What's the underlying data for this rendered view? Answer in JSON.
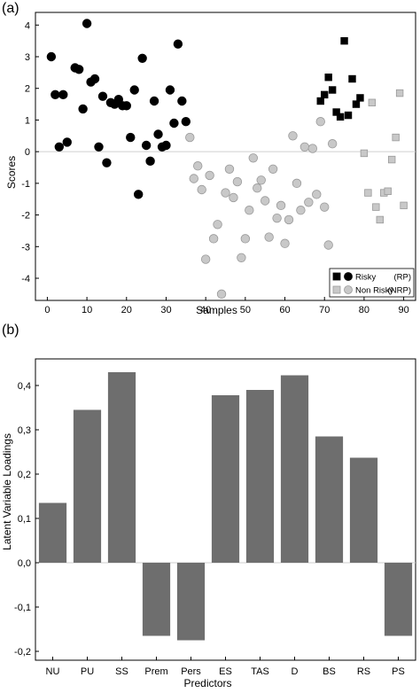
{
  "chart_data": [
    {
      "type": "scatter",
      "panel_label": "(a)",
      "xlabel": "Samples",
      "ylabel": "Scores",
      "xlim": [
        -3,
        93
      ],
      "ylim": [
        -4.7,
        4.4
      ],
      "xticks": [
        0,
        10,
        20,
        30,
        40,
        50,
        60,
        70,
        80,
        90
      ],
      "yticks": [
        -4,
        -3,
        -2,
        -1,
        0,
        1,
        2,
        3,
        4
      ],
      "zero_line": true,
      "grid": false,
      "legend_position": "bottom-right",
      "legend": [
        {
          "label": "Risky",
          "code": "(RP)"
        },
        {
          "label": "Non Risky",
          "code": "(NRP)"
        }
      ],
      "colors": {
        "risky": "#000000",
        "non_risky": "#c8c8c8",
        "non_risky_edge": "#9a9a9a"
      },
      "series": [
        {
          "name": "Risky (RP) calibration",
          "marker": "circle",
          "color": "#000000",
          "points": [
            [
              1,
              3.0
            ],
            [
              2,
              1.8
            ],
            [
              3,
              0.15
            ],
            [
              4,
              1.8
            ],
            [
              5,
              0.3
            ],
            [
              7,
              2.65
            ],
            [
              8,
              2.6
            ],
            [
              9,
              1.35
            ],
            [
              10,
              4.05
            ],
            [
              11,
              2.2
            ],
            [
              12,
              2.3
            ],
            [
              13,
              0.15
            ],
            [
              14,
              1.75
            ],
            [
              15,
              -0.35
            ],
            [
              16,
              1.55
            ],
            [
              17,
              1.5
            ],
            [
              18,
              1.65
            ],
            [
              19,
              1.45
            ],
            [
              20,
              1.45
            ],
            [
              21,
              0.45
            ],
            [
              22,
              1.95
            ],
            [
              23,
              -1.35
            ],
            [
              24,
              2.95
            ],
            [
              25,
              0.2
            ],
            [
              26,
              -0.3
            ],
            [
              27,
              1.6
            ],
            [
              28,
              0.55
            ],
            [
              29,
              0.15
            ],
            [
              30,
              0.2
            ],
            [
              31,
              1.95
            ],
            [
              32,
              0.9
            ],
            [
              33,
              3.4
            ],
            [
              34,
              1.6
            ],
            [
              35,
              0.95
            ]
          ]
        },
        {
          "name": "Non Risky (NRP) calibration",
          "marker": "circle",
          "color": "#c8c8c8",
          "points": [
            [
              36,
              0.45
            ],
            [
              37,
              -0.85
            ],
            [
              38,
              -0.45
            ],
            [
              39,
              -1.2
            ],
            [
              40,
              -3.4
            ],
            [
              41,
              -0.75
            ],
            [
              42,
              -2.75
            ],
            [
              43,
              -2.3
            ],
            [
              44,
              -4.5
            ],
            [
              45,
              -1.3
            ],
            [
              46,
              -0.55
            ],
            [
              47,
              -1.45
            ],
            [
              48,
              -0.95
            ],
            [
              49,
              -3.35
            ],
            [
              50,
              -2.75
            ],
            [
              51,
              -1.85
            ],
            [
              52,
              -0.2
            ],
            [
              53,
              -1.15
            ],
            [
              54,
              -0.9
            ],
            [
              55,
              -1.55
            ],
            [
              56,
              -2.7
            ],
            [
              57,
              -0.55
            ],
            [
              58,
              -2.1
            ],
            [
              59,
              -1.7
            ],
            [
              60,
              -2.9
            ],
            [
              61,
              -2.15
            ],
            [
              62,
              0.5
            ],
            [
              63,
              -1.0
            ],
            [
              64,
              -1.85
            ],
            [
              65,
              0.15
            ],
            [
              66,
              -1.6
            ],
            [
              67,
              0.1
            ],
            [
              68,
              -1.35
            ],
            [
              69,
              0.95
            ],
            [
              70,
              -1.75
            ],
            [
              71,
              -2.95
            ],
            [
              72,
              0.25
            ]
          ]
        },
        {
          "name": "Risky (RP) validation",
          "marker": "square",
          "color": "#000000",
          "points": [
            [
              69,
              1.6
            ],
            [
              70,
              1.8
            ],
            [
              71,
              2.35
            ],
            [
              72,
              1.95
            ],
            [
              73,
              1.25
            ],
            [
              74,
              1.1
            ],
            [
              75,
              3.5
            ],
            [
              76,
              1.15
            ],
            [
              77,
              2.3
            ],
            [
              78,
              1.5
            ],
            [
              79,
              1.7
            ]
          ]
        },
        {
          "name": "Non Risky (NRP) validation",
          "marker": "square",
          "color": "#c8c8c8",
          "points": [
            [
              80,
              -0.05
            ],
            [
              81,
              -1.3
            ],
            [
              82,
              1.55
            ],
            [
              83,
              -1.75
            ],
            [
              84,
              -2.15
            ],
            [
              85,
              -1.3
            ],
            [
              86,
              -1.25
            ],
            [
              87,
              -0.25
            ],
            [
              88,
              0.45
            ],
            [
              89,
              1.85
            ],
            [
              90,
              -1.7
            ]
          ]
        }
      ]
    },
    {
      "type": "bar",
      "panel_label": "(b)",
      "xlabel": "Predictors",
      "ylabel": "Latent Variable Loadings",
      "ylim": [
        -0.22,
        0.46
      ],
      "yticks": [
        -0.2,
        -0.1,
        0.0,
        0.1,
        0.2,
        0.3,
        0.4
      ],
      "ytick_labels": [
        "-0,2",
        "-0,1",
        "0,0",
        "0,1",
        "0,2",
        "0,3",
        "0,4"
      ],
      "zero_line": true,
      "grid": false,
      "bar_color": "#6e6e6e",
      "categories": [
        "NU",
        "PU",
        "SS",
        "Prem",
        "Pers",
        "ES",
        "TAS",
        "D",
        "BS",
        "RS",
        "PS"
      ],
      "values": [
        0.135,
        0.345,
        0.43,
        -0.165,
        -0.175,
        0.378,
        0.39,
        0.423,
        0.285,
        0.237,
        -0.165
      ]
    }
  ]
}
